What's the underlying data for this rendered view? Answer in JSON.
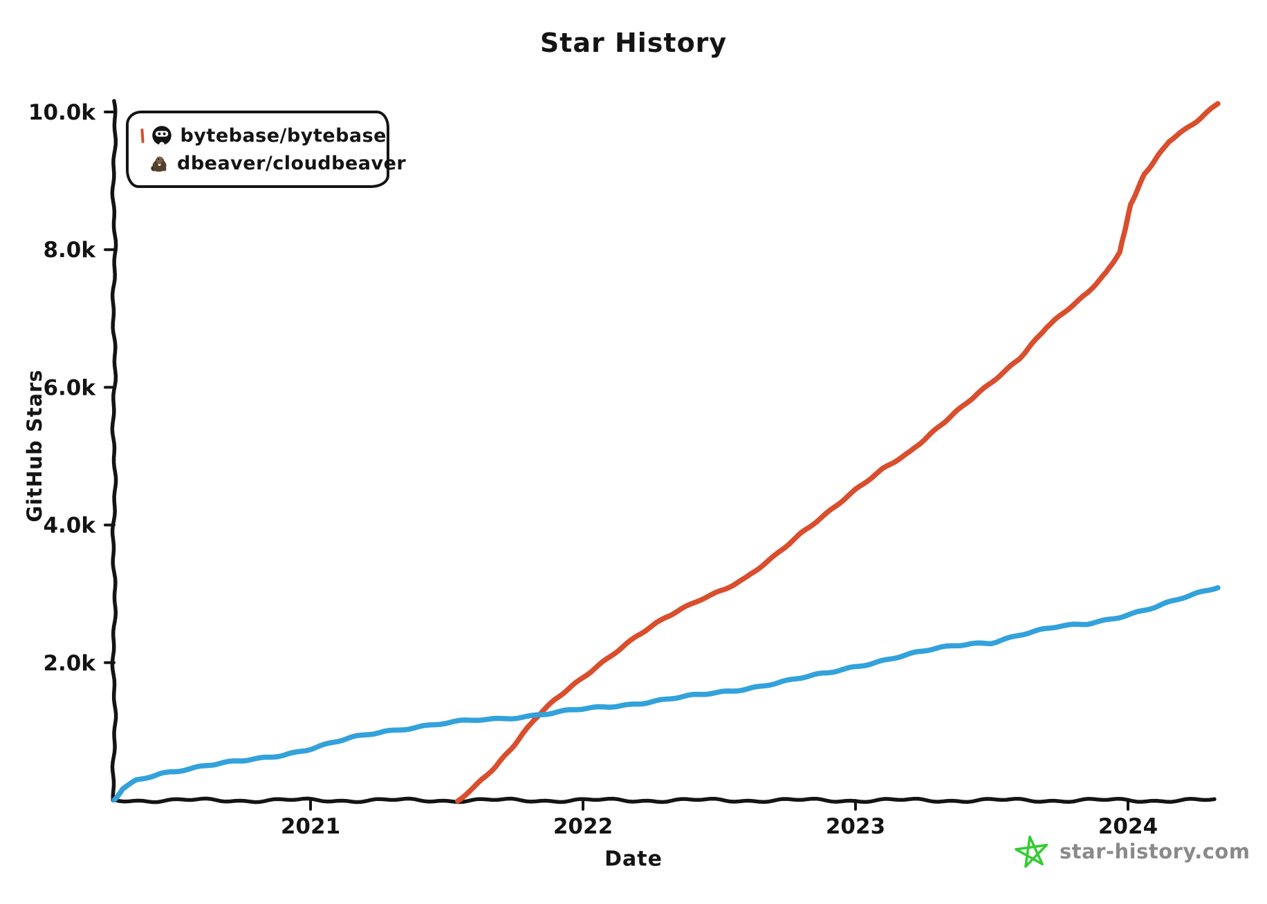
{
  "header": {
    "title": "Star History"
  },
  "axes": {
    "x_label": "Date",
    "y_label": "GitHub Stars"
  },
  "legend": {
    "items": [
      {
        "label": "bytebase/bytebase",
        "color": "#D94E2D",
        "icon": "bytebase-avatar"
      },
      {
        "label": "dbeaver/cloudbeaver",
        "color": "#33A2DB",
        "icon": "beaver-avatar"
      }
    ]
  },
  "watermark": {
    "text": "star-history.com",
    "text_color": "#8A8A8A",
    "star_color": "#33CC33"
  },
  "chart_data": {
    "type": "line",
    "title": "Star History",
    "xlabel": "Date",
    "ylabel": "GitHub Stars",
    "grid": false,
    "legend_position": "top-left",
    "xlim": [
      2020.25,
      2024.45
    ],
    "ylim": [
      0,
      10200
    ],
    "x_ticks": [
      {
        "value": 2021,
        "label": "2021"
      },
      {
        "value": 2022,
        "label": "2022"
      },
      {
        "value": 2023,
        "label": "2023"
      },
      {
        "value": 2024,
        "label": "2024"
      }
    ],
    "y_ticks": [
      {
        "value": 2000,
        "label": "2.0k"
      },
      {
        "value": 4000,
        "label": "4.0k"
      },
      {
        "value": 6000,
        "label": "6.0k"
      },
      {
        "value": 8000,
        "label": "8.0k"
      },
      {
        "value": 10000,
        "label": "10.0k"
      }
    ],
    "series": [
      {
        "name": "bytebase/bytebase",
        "color": "#D94E2D",
        "points": [
          [
            2021.54,
            0
          ],
          [
            2021.6,
            200
          ],
          [
            2021.68,
            500
          ],
          [
            2021.75,
            820
          ],
          [
            2021.82,
            1180
          ],
          [
            2021.9,
            1480
          ],
          [
            2022.0,
            1780
          ],
          [
            2022.1,
            2080
          ],
          [
            2022.2,
            2380
          ],
          [
            2022.3,
            2640
          ],
          [
            2022.42,
            2900
          ],
          [
            2022.52,
            3080
          ],
          [
            2022.6,
            3250
          ],
          [
            2022.7,
            3550
          ],
          [
            2022.8,
            3880
          ],
          [
            2022.9,
            4180
          ],
          [
            2023.0,
            4500
          ],
          [
            2023.1,
            4800
          ],
          [
            2023.2,
            5050
          ],
          [
            2023.3,
            5400
          ],
          [
            2023.4,
            5750
          ],
          [
            2023.5,
            6080
          ],
          [
            2023.6,
            6420
          ],
          [
            2023.7,
            6880
          ],
          [
            2023.78,
            7150
          ],
          [
            2023.85,
            7380
          ],
          [
            2023.92,
            7680
          ],
          [
            2023.97,
            7980
          ],
          [
            2024.01,
            8650
          ],
          [
            2024.06,
            9080
          ],
          [
            2024.15,
            9560
          ],
          [
            2024.25,
            9850
          ],
          [
            2024.33,
            10120
          ]
        ]
      },
      {
        "name": "dbeaver/cloudbeaver",
        "color": "#33A2DB",
        "points": [
          [
            2020.28,
            0
          ],
          [
            2020.31,
            160
          ],
          [
            2020.36,
            290
          ],
          [
            2020.45,
            400
          ],
          [
            2020.6,
            490
          ],
          [
            2020.75,
            570
          ],
          [
            2020.9,
            670
          ],
          [
            2021.0,
            750
          ],
          [
            2021.15,
            900
          ],
          [
            2021.27,
            1000
          ],
          [
            2021.4,
            1080
          ],
          [
            2021.55,
            1140
          ],
          [
            2021.7,
            1190
          ],
          [
            2021.85,
            1250
          ],
          [
            2022.0,
            1320
          ],
          [
            2022.15,
            1390
          ],
          [
            2022.3,
            1460
          ],
          [
            2022.45,
            1540
          ],
          [
            2022.6,
            1630
          ],
          [
            2022.75,
            1730
          ],
          [
            2022.9,
            1850
          ],
          [
            2023.0,
            1950
          ],
          [
            2023.15,
            2080
          ],
          [
            2023.3,
            2200
          ],
          [
            2023.42,
            2280
          ],
          [
            2023.5,
            2300
          ],
          [
            2023.6,
            2400
          ],
          [
            2023.75,
            2520
          ],
          [
            2023.85,
            2570
          ],
          [
            2024.0,
            2700
          ],
          [
            2024.1,
            2800
          ],
          [
            2024.2,
            2930
          ],
          [
            2024.33,
            3100
          ]
        ]
      }
    ]
  }
}
